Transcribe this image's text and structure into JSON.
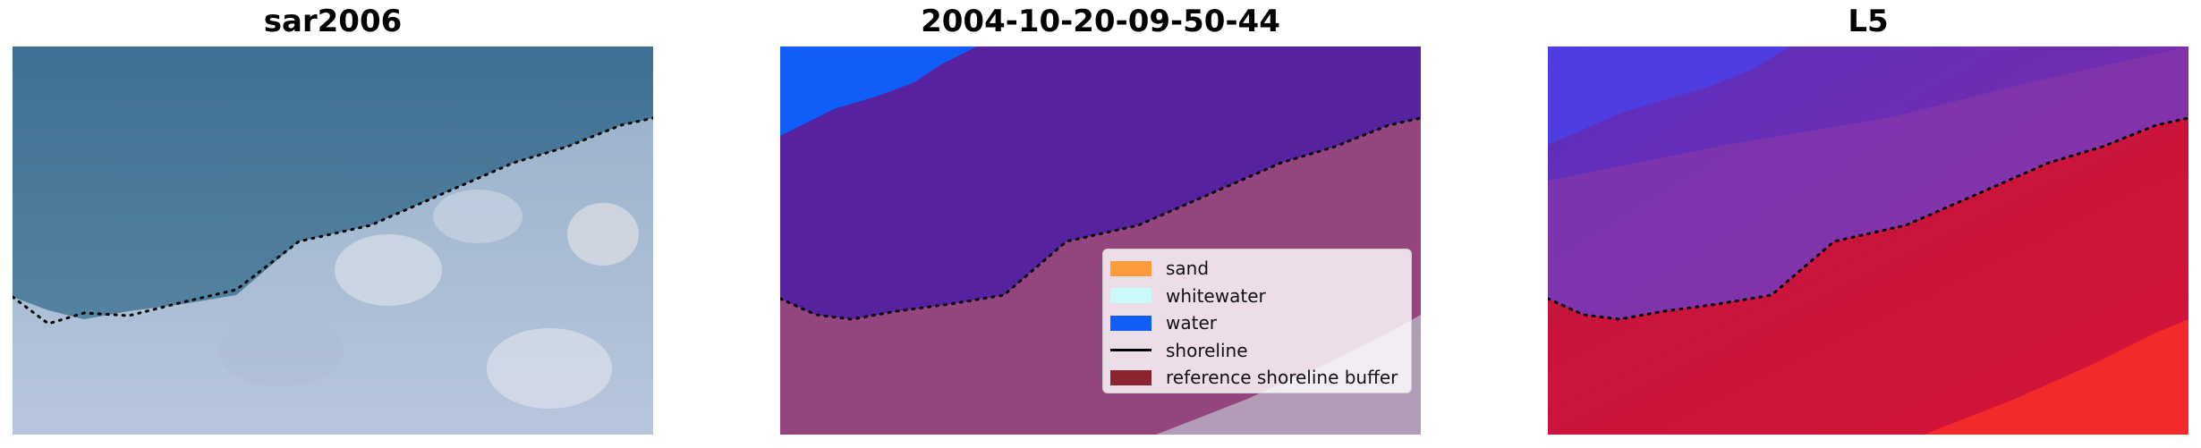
{
  "panels": [
    {
      "title": "sar2006"
    },
    {
      "title": "2004-10-20-09-50-44"
    },
    {
      "title": "L5"
    }
  ],
  "legend": {
    "items": [
      {
        "label": "sand",
        "color": "#ff9a3c",
        "kind": "patch"
      },
      {
        "label": "whitewater",
        "color": "#cafafa",
        "kind": "patch"
      },
      {
        "label": "water",
        "color": "#0f5ef7",
        "kind": "patch"
      },
      {
        "label": "shoreline",
        "color": "#000000",
        "kind": "line"
      },
      {
        "label": "reference shoreline buffer",
        "color": "#8b2530",
        "kind": "patch"
      }
    ]
  },
  "colors": {
    "shoreline": "#000000",
    "classified_water_bg": "#5622a0",
    "classified_land": "#95457e",
    "water_class": "#0f5ef7"
  }
}
